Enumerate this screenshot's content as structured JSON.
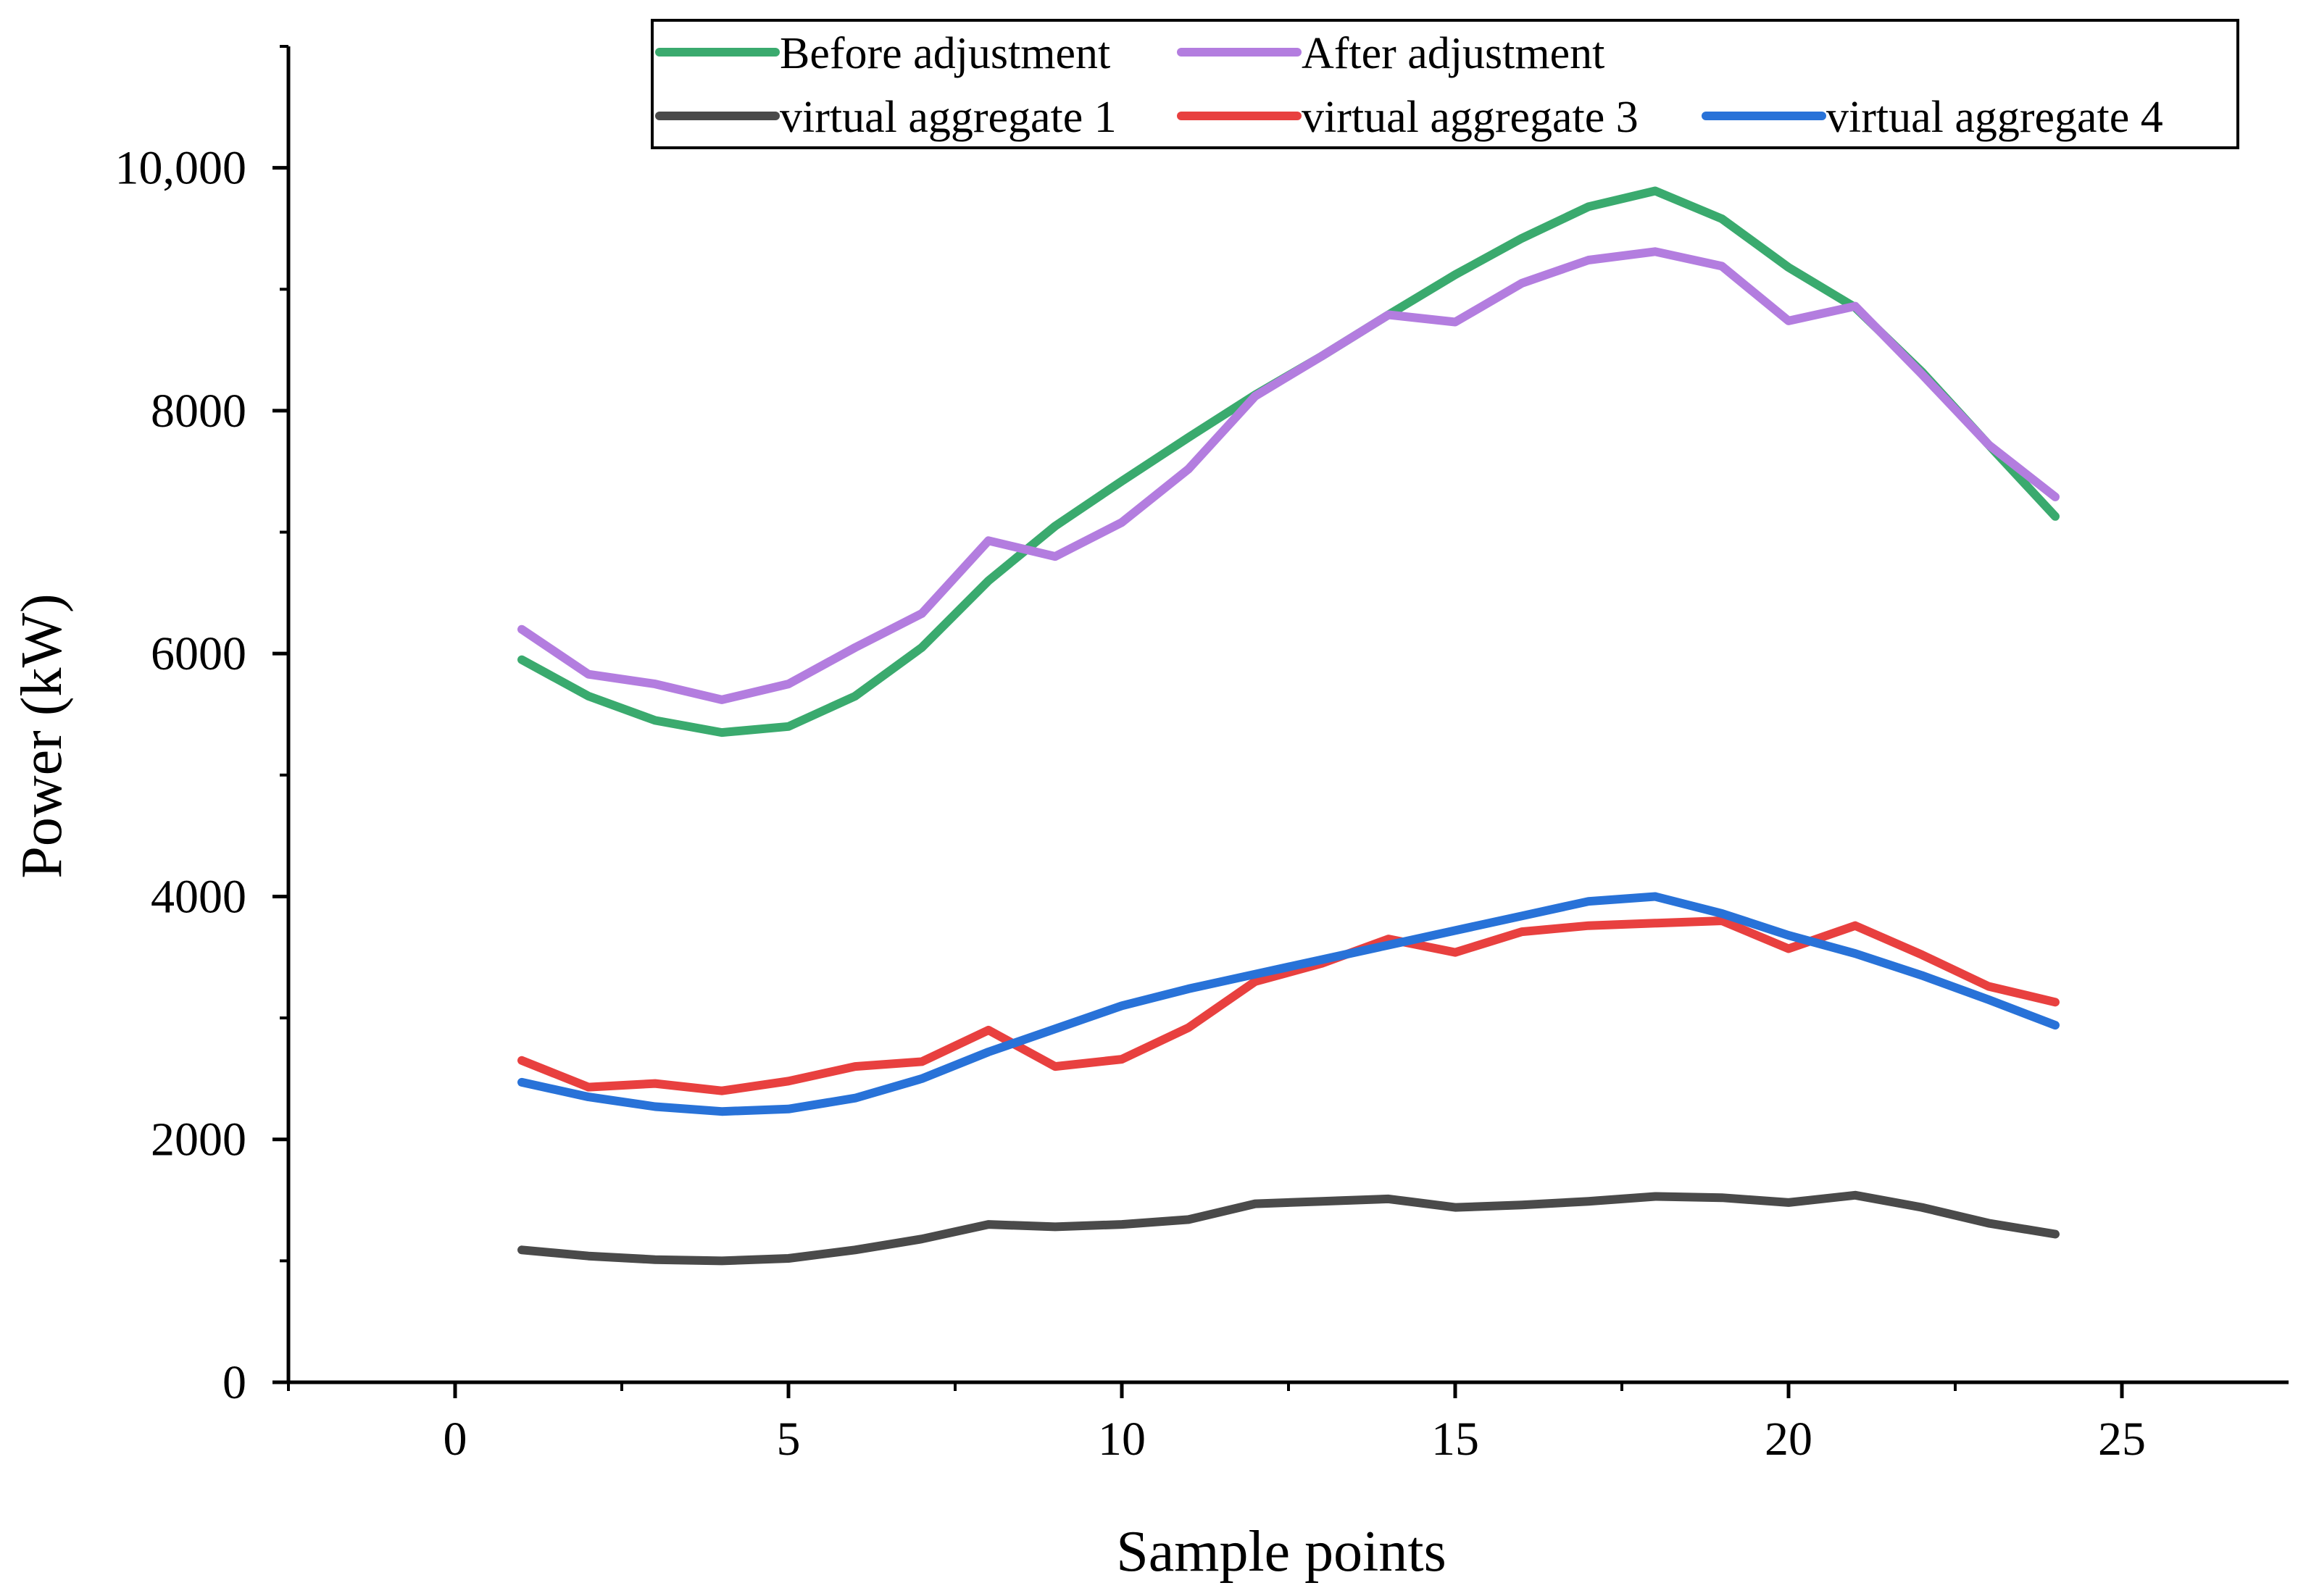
{
  "chart_data": {
    "type": "line",
    "title": "",
    "xlabel": "Sample points",
    "ylabel": "Power (kW)",
    "xlim": [
      -2.5,
      27.5
    ],
    "ylim": [
      0,
      11000
    ],
    "x_ticks": [
      0,
      5,
      10,
      15,
      20,
      25
    ],
    "x_tick_labels": [
      "0",
      "5",
      "10",
      "15",
      "20",
      "25"
    ],
    "y_ticks": [
      0,
      2000,
      4000,
      6000,
      8000,
      10000
    ],
    "y_tick_labels": [
      "0",
      "2000",
      "4000",
      "6000",
      "8000",
      "10,000"
    ],
    "legend_position": "top-right",
    "x": [
      1,
      2,
      3,
      4,
      5,
      6,
      7,
      8,
      9,
      10,
      11,
      12,
      13,
      14,
      15,
      16,
      17,
      18,
      19,
      20,
      21,
      22,
      23,
      24
    ],
    "series": [
      {
        "name": "Before adjustment",
        "color": "#3aaa6e",
        "values": [
          5950,
          5650,
          5450,
          5350,
          5400,
          5650,
          6050,
          6600,
          7050,
          7420,
          7780,
          8130,
          8450,
          8790,
          9120,
          9420,
          9680,
          9810,
          9580,
          9180,
          8850,
          8320,
          7720,
          7130
        ]
      },
      {
        "name": "After adjustment",
        "color": "#b37ddf",
        "values": [
          6200,
          5830,
          5750,
          5620,
          5750,
          6050,
          6330,
          6930,
          6800,
          7080,
          7520,
          8120,
          8450,
          8790,
          8730,
          9050,
          9240,
          9310,
          9190,
          8740,
          8860,
          8300,
          7720,
          7290
        ]
      },
      {
        "name": "virtual aggregate 1",
        "color": "#4a4a4a",
        "values": [
          1090,
          1040,
          1010,
          1000,
          1020,
          1090,
          1180,
          1300,
          1280,
          1300,
          1340,
          1470,
          1490,
          1510,
          1440,
          1460,
          1490,
          1530,
          1520,
          1480,
          1540,
          1440,
          1310,
          1220
        ]
      },
      {
        "name": "virtual aggregate 3",
        "color": "#e8403f",
        "values": [
          2650,
          2430,
          2460,
          2400,
          2480,
          2600,
          2640,
          2900,
          2600,
          2660,
          2920,
          3300,
          3450,
          3650,
          3540,
          3710,
          3760,
          3780,
          3800,
          3570,
          3760,
          3520,
          3260,
          3130
        ]
      },
      {
        "name": "virtual aggregate 4",
        "color": "#2872d8",
        "values": [
          2470,
          2350,
          2270,
          2230,
          2250,
          2340,
          2500,
          2720,
          2910,
          3100,
          3240,
          3360,
          3480,
          3600,
          3720,
          3840,
          3960,
          4000,
          3860,
          3680,
          3530,
          3350,
          3150,
          2940
        ]
      }
    ]
  }
}
